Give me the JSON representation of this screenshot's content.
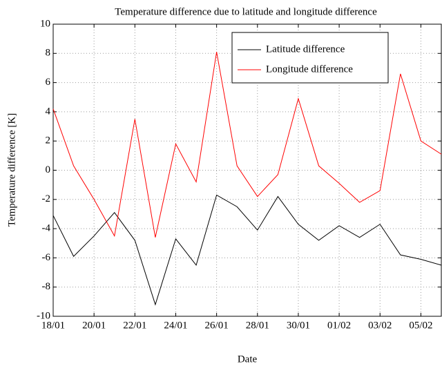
{
  "chart_data": {
    "type": "line",
    "title": "Temperature difference due to latitude and longitude difference",
    "x_label": "Date",
    "y_label": "Temperature difference [K]",
    "categories": [
      "18/01",
      null,
      "20/01",
      null,
      "22/01",
      null,
      "24/01",
      null,
      "26/01",
      null,
      "28/01",
      null,
      "30/01",
      null,
      "01/02",
      null,
      "03/02",
      null,
      "05/02",
      null
    ],
    "series": [
      {
        "name": "Latitude difference",
        "color": "#000000",
        "values": [
          -3.1,
          -5.9,
          -4.5,
          -2.9,
          -4.8,
          -9.2,
          -4.7,
          -6.5,
          -1.7,
          -2.5,
          -4.1,
          -1.8,
          -3.7,
          -4.8,
          -3.8,
          -4.6,
          -3.7,
          -5.8,
          -6.1,
          -6.5
        ]
      },
      {
        "name": "Longitude difference",
        "color": "#ff0000",
        "values": [
          4.2,
          0.3,
          -2.0,
          -4.5,
          3.5,
          -4.6,
          1.8,
          -0.8,
          8.1,
          0.3,
          -1.8,
          -0.3,
          4.9,
          0.3,
          -0.9,
          -2.2,
          -1.4,
          6.6,
          2.0,
          1.1
        ]
      }
    ],
    "ylim": [
      -10,
      10
    ],
    "yticks": [
      -10,
      -8,
      -6,
      -4,
      -2,
      0,
      2,
      4,
      6,
      8,
      10
    ],
    "grid": true,
    "legend": "upper-right"
  }
}
